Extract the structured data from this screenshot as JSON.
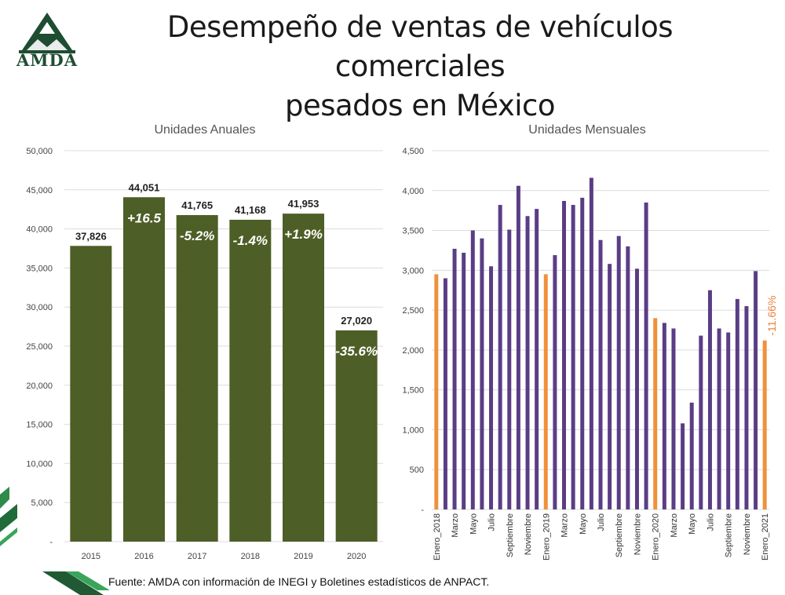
{
  "header": {
    "logo_text": "AMDA",
    "title_line1": "Desempeño de ventas de vehículos comerciales",
    "title_line2": "pesados en México"
  },
  "footer": {
    "source": "Fuente: AMDA con información de INEGI y Boletines estadísticos de ANPACT."
  },
  "colors": {
    "annual_bar": "#4d5e26",
    "monthly_bar": "#5b3d86",
    "january_bar": "#f0913a",
    "annotation": "#e8833a",
    "grid": "#dcdcdc"
  },
  "chart_data": [
    {
      "type": "bar",
      "title": "Unidades Anuales",
      "categories": [
        "2015",
        "2016",
        "2017",
        "2018",
        "2019",
        "2020"
      ],
      "values": [
        37826,
        44051,
        41765,
        41168,
        41953,
        27020
      ],
      "value_labels": [
        "37,826",
        "44,051",
        "41,765",
        "41,168",
        "41,953",
        "27,020"
      ],
      "change_labels": [
        "",
        "+16.5",
        "-5.2%",
        "-1.4%",
        "+1.9%",
        "-35.6%"
      ],
      "ylim": [
        0,
        50000
      ],
      "yticks": [
        "-",
        "5,000",
        "10,000",
        "15,000",
        "20,000",
        "25,000",
        "30,000",
        "35,000",
        "40,000",
        "45,000",
        "50,000"
      ],
      "grid": true
    },
    {
      "type": "bar",
      "title": "Unidades Mensuales",
      "values": [
        2950,
        2900,
        3270,
        3220,
        3500,
        3400,
        3050,
        3820,
        3510,
        4060,
        3680,
        3770,
        2950,
        3190,
        3870,
        3820,
        3910,
        4160,
        3380,
        3080,
        3430,
        3300,
        3020,
        3850,
        2400,
        2340,
        2270,
        1080,
        1340,
        2180,
        2750,
        2270,
        2220,
        2640,
        2550,
        2990,
        2120
      ],
      "highlight_indices": [
        0,
        12,
        24,
        36
      ],
      "x_tick_labels": [
        {
          "index": 0,
          "label": "Enero_2018"
        },
        {
          "index": 2,
          "label": "Marzo"
        },
        {
          "index": 4,
          "label": "Mayo"
        },
        {
          "index": 6,
          "label": "Julio"
        },
        {
          "index": 8,
          "label": "Septiembre"
        },
        {
          "index": 10,
          "label": "Noviembre"
        },
        {
          "index": 12,
          "label": "Enero_2019"
        },
        {
          "index": 14,
          "label": "Marzo"
        },
        {
          "index": 16,
          "label": "Mayo"
        },
        {
          "index": 18,
          "label": "Julio"
        },
        {
          "index": 20,
          "label": "Septiembre"
        },
        {
          "index": 22,
          "label": "Noviembre"
        },
        {
          "index": 24,
          "label": "Enero_2020"
        },
        {
          "index": 26,
          "label": "Marzo"
        },
        {
          "index": 28,
          "label": "Mayo"
        },
        {
          "index": 30,
          "label": "Julio"
        },
        {
          "index": 32,
          "label": "Septiembre"
        },
        {
          "index": 34,
          "label": "Noviembre"
        },
        {
          "index": 36,
          "label": "Enero_2021"
        }
      ],
      "annotation": "-11.66%",
      "ylim": [
        0,
        4500
      ],
      "yticks": [
        "-",
        "500",
        "1,000",
        "1,500",
        "2,000",
        "2,500",
        "3,000",
        "3,500",
        "4,000",
        "4,500"
      ],
      "grid": true
    }
  ]
}
